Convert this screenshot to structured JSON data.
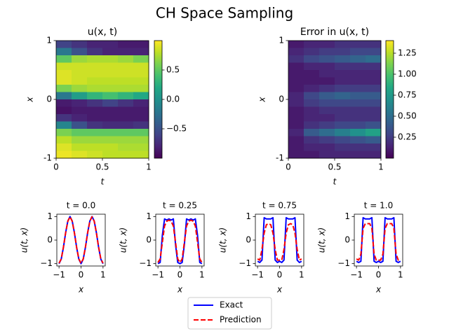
{
  "title": "CH Space Sampling",
  "chart_data": [
    {
      "type": "heatmap",
      "title": "u(x, t)",
      "xlabel": "t",
      "ylabel": "x",
      "xlim": [
        0,
        1
      ],
      "ylim": [
        -1,
        1
      ],
      "xticks": [
        0,
        0.5,
        1
      ],
      "yticks": [
        -1,
        0,
        1
      ],
      "colormap": "viridis",
      "colorbar": {
        "lim": [
          -1,
          1
        ],
        "ticks": [
          {
            "value": -0.5,
            "label": "−0.5"
          },
          {
            "value": 0,
            "label": "0.0"
          },
          0.5
        ]
      },
      "values": [
        [
          -0.6,
          -0.7,
          -0.8,
          -0.8,
          -0.85,
          -0.85
        ],
        [
          -0.2,
          -0.5,
          -0.7,
          -0.8,
          -0.8,
          -0.8
        ],
        [
          0.5,
          0.7,
          0.75,
          0.75,
          0.7,
          0.6
        ],
        [
          0.85,
          0.85,
          0.85,
          0.85,
          0.85,
          0.85
        ],
        [
          0.9,
          0.85,
          0.85,
          0.85,
          0.85,
          0.85
        ],
        [
          0.9,
          0.85,
          0.8,
          0.8,
          0.8,
          0.8
        ],
        [
          0.6,
          0.7,
          0.75,
          0.75,
          0.75,
          0.75
        ],
        [
          -0.2,
          0.1,
          0.3,
          0.4,
          0.3,
          0.2
        ],
        [
          -0.85,
          -0.8,
          -0.7,
          -0.6,
          -0.7,
          -0.8
        ],
        [
          -0.9,
          -0.85,
          -0.85,
          -0.85,
          -0.85,
          -0.85
        ],
        [
          -0.7,
          -0.8,
          -0.85,
          -0.85,
          -0.85,
          -0.85
        ],
        [
          -0.1,
          -0.5,
          -0.7,
          -0.75,
          -0.75,
          -0.7
        ],
        [
          0.6,
          0.5,
          0.5,
          0.5,
          0.5,
          0.5
        ],
        [
          0.8,
          0.7,
          0.7,
          0.7,
          0.7,
          0.7
        ],
        [
          0.9,
          0.8,
          0.8,
          0.8,
          0.75,
          0.75
        ],
        [
          0.95,
          0.9,
          0.85,
          0.8,
          0.8,
          0.8
        ]
      ]
    },
    {
      "type": "heatmap",
      "title": "Error in u(x, t)",
      "xlabel": "t",
      "ylabel": "x",
      "xlim": [
        0,
        1
      ],
      "ylim": [
        -1,
        1
      ],
      "xticks": [
        0,
        0.5,
        1
      ],
      "yticks": [
        -1,
        0,
        1
      ],
      "colormap": "viridis",
      "colorbar": {
        "lim": [
          0,
          1.4
        ],
        "ticks": [
          0.25,
          {
            "value": 0.5,
            "label": "0.50"
          },
          0.75,
          {
            "value": 1,
            "label": "1.00"
          },
          1.25
        ]
      },
      "values": [
        [
          0.1,
          0.15,
          0.15,
          0.2,
          0.2,
          0.2
        ],
        [
          0.15,
          0.2,
          0.25,
          0.25,
          0.3,
          0.3
        ],
        [
          0.2,
          0.3,
          0.35,
          0.4,
          0.45,
          0.5
        ],
        [
          0.1,
          0.15,
          0.15,
          0.2,
          0.2,
          0.2
        ],
        [
          0.1,
          0.1,
          0.15,
          0.15,
          0.15,
          0.15
        ],
        [
          0.1,
          0.1,
          0.1,
          0.15,
          0.15,
          0.15
        ],
        [
          0.1,
          0.15,
          0.2,
          0.25,
          0.25,
          0.25
        ],
        [
          0.15,
          0.3,
          0.4,
          0.45,
          0.4,
          0.4
        ],
        [
          0.15,
          0.25,
          0.3,
          0.3,
          0.3,
          0.3
        ],
        [
          0.1,
          0.15,
          0.2,
          0.2,
          0.2,
          0.2
        ],
        [
          0.1,
          0.15,
          0.15,
          0.2,
          0.2,
          0.2
        ],
        [
          0.1,
          0.2,
          0.25,
          0.3,
          0.3,
          0.35
        ],
        [
          0.15,
          0.4,
          0.5,
          0.6,
          0.7,
          0.8
        ],
        [
          0.1,
          0.2,
          0.25,
          0.3,
          0.35,
          0.4
        ],
        [
          0.1,
          0.15,
          0.15,
          0.2,
          0.2,
          0.2
        ],
        [
          0.1,
          0.1,
          0.15,
          0.15,
          0.15,
          0.15
        ]
      ]
    },
    {
      "type": "line",
      "title": "t = 0.0",
      "xlabel": "x",
      "ylabel": "u(t, x)",
      "xlim": [
        -1.1,
        1.1
      ],
      "ylim": [
        -1.1,
        1.1
      ],
      "xticks": [
        {
          "value": -1,
          "label": "−1"
        },
        0,
        1
      ],
      "yticks": [
        {
          "value": -1,
          "label": "−1"
        },
        0,
        1
      ],
      "x": [
        -1,
        -0.9,
        -0.8,
        -0.7,
        -0.6,
        -0.5,
        -0.4,
        -0.3,
        -0.2,
        -0.1,
        0,
        0.1,
        0.2,
        0.3,
        0.4,
        0.5,
        0.6,
        0.7,
        0.8,
        0.9,
        1
      ],
      "series": [
        {
          "name": "Exact",
          "color": "#0000ff",
          "linestyle": "solid",
          "values": [
            -1,
            -0.809,
            -0.309,
            0.309,
            0.809,
            1,
            0.809,
            0.309,
            -0.309,
            -0.809,
            -1,
            -0.809,
            -0.309,
            0.309,
            0.809,
            1,
            0.809,
            0.309,
            -0.309,
            -0.809,
            -1
          ]
        },
        {
          "name": "Prediction",
          "color": "#ff0000",
          "linestyle": "dashed",
          "values": [
            -0.98,
            -0.8,
            -0.3,
            0.31,
            0.8,
            0.99,
            0.8,
            0.3,
            -0.31,
            -0.8,
            -0.98,
            -0.8,
            -0.3,
            0.31,
            0.8,
            0.99,
            0.8,
            0.3,
            -0.31,
            -0.8,
            -0.98
          ]
        }
      ]
    },
    {
      "type": "line",
      "title": "t = 0.25",
      "xlabel": "x",
      "ylabel": "u(t, x)",
      "xlim": [
        -1.1,
        1.1
      ],
      "ylim": [
        -1.1,
        1.1
      ],
      "xticks": [
        {
          "value": -1,
          "label": "−1"
        },
        0,
        1
      ],
      "yticks": [
        {
          "value": -1,
          "label": "−1"
        },
        0,
        1
      ],
      "x": [
        -1,
        -0.9,
        -0.8,
        -0.7,
        -0.6,
        -0.5,
        -0.4,
        -0.3,
        -0.2,
        -0.1,
        0,
        0.1,
        0.2,
        0.3,
        0.4,
        0.5,
        0.6,
        0.7,
        0.8,
        0.9,
        1
      ],
      "series": [
        {
          "name": "Exact",
          "color": "#0000ff",
          "linestyle": "solid",
          "values": [
            -1,
            -0.95,
            0.2,
            0.9,
            0.85,
            0.9,
            0.85,
            0.9,
            -0.2,
            -0.95,
            -1,
            -0.95,
            -0.2,
            0.9,
            0.85,
            0.9,
            0.85,
            0.9,
            0.2,
            -0.95,
            -1
          ]
        },
        {
          "name": "Prediction",
          "color": "#ff0000",
          "linestyle": "dashed",
          "values": [
            -0.95,
            -0.8,
            -0.1,
            0.6,
            0.8,
            0.85,
            0.8,
            0.6,
            -0.1,
            -0.8,
            -0.95,
            -0.8,
            -0.1,
            0.6,
            0.8,
            0.85,
            0.8,
            0.6,
            -0.1,
            -0.8,
            -0.95
          ]
        }
      ]
    },
    {
      "type": "line",
      "title": "t = 0.75",
      "xlabel": "x",
      "ylabel": "u(t, x)",
      "xlim": [
        -1.1,
        1.1
      ],
      "ylim": [
        -1.1,
        1.1
      ],
      "xticks": [
        {
          "value": -1,
          "label": "−1"
        },
        0,
        1
      ],
      "yticks": [
        {
          "value": -1,
          "label": "−1"
        },
        0,
        1
      ],
      "x": [
        -1,
        -0.9,
        -0.8,
        -0.7,
        -0.6,
        -0.5,
        -0.4,
        -0.3,
        -0.2,
        -0.1,
        0,
        0.1,
        0.2,
        0.3,
        0.4,
        0.5,
        0.6,
        0.7,
        0.8,
        0.9,
        1
      ],
      "series": [
        {
          "name": "Exact",
          "color": "#0000ff",
          "linestyle": "solid",
          "values": [
            -0.9,
            -0.95,
            -0.85,
            0.95,
            0.9,
            0.9,
            0.9,
            0.95,
            -0.85,
            -0.95,
            -0.9,
            -0.95,
            -0.85,
            0.95,
            0.9,
            0.9,
            0.9,
            0.95,
            -0.85,
            -0.95,
            -0.9
          ]
        },
        {
          "name": "Prediction",
          "color": "#ff0000",
          "linestyle": "dashed",
          "values": [
            -0.8,
            -0.85,
            -0.4,
            0.3,
            0.65,
            0.7,
            0.65,
            0.3,
            -0.4,
            -0.85,
            -0.85,
            -0.85,
            -0.4,
            0.3,
            0.65,
            0.7,
            0.65,
            0.3,
            -0.4,
            -0.85,
            -0.8
          ]
        }
      ]
    },
    {
      "type": "line",
      "title": "t = 1.0",
      "xlabel": "x",
      "ylabel": "u(t, x)",
      "xlim": [
        -1.1,
        1.1
      ],
      "ylim": [
        -1.1,
        1.1
      ],
      "xticks": [
        {
          "value": -1,
          "label": "−1"
        },
        0,
        1
      ],
      "yticks": [
        {
          "value": -1,
          "label": "−1"
        },
        0,
        1
      ],
      "x": [
        -1,
        -0.9,
        -0.8,
        -0.7,
        -0.6,
        -0.5,
        -0.4,
        -0.3,
        -0.2,
        -0.1,
        0,
        0.1,
        0.2,
        0.3,
        0.4,
        0.5,
        0.6,
        0.7,
        0.8,
        0.9,
        1
      ],
      "series": [
        {
          "name": "Exact",
          "color": "#0000ff",
          "linestyle": "solid",
          "values": [
            -0.9,
            -0.95,
            -0.9,
            0.95,
            0.9,
            0.9,
            0.9,
            0.95,
            -0.9,
            -0.95,
            -0.9,
            -0.95,
            -0.9,
            0.95,
            0.9,
            0.9,
            0.9,
            0.95,
            -0.9,
            -0.95,
            -0.9
          ]
        },
        {
          "name": "Prediction",
          "color": "#ff0000",
          "linestyle": "dashed",
          "values": [
            -0.8,
            -0.85,
            -0.6,
            0.5,
            0.7,
            0.7,
            0.7,
            0.5,
            -0.6,
            -0.85,
            -0.85,
            -0.85,
            -0.6,
            0.5,
            0.7,
            0.7,
            0.7,
            0.5,
            -0.6,
            -0.85,
            -0.8
          ]
        }
      ]
    }
  ]
}
